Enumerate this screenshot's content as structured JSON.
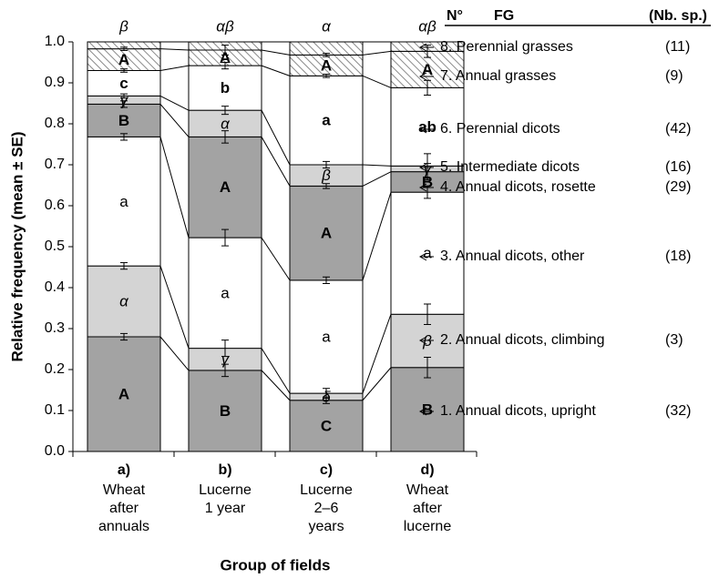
{
  "chart_data": {
    "type": "stacked_bar",
    "ylabel": "Relative frequency (mean ± SE)",
    "xlabel": "Group of fields",
    "categories": [
      "a)",
      "b)",
      "c)",
      "d)"
    ],
    "category_descriptions": [
      [
        "Wheat",
        "after",
        "annuals"
      ],
      [
        "Lucerne",
        "1 year"
      ],
      [
        "Lucerne",
        "2–6",
        "years"
      ],
      [
        "Wheat",
        "after",
        "lucerne"
      ]
    ],
    "top_letters": [
      "β",
      "αβ",
      "α",
      "αβ"
    ],
    "ylim": [
      0,
      1
    ],
    "yticks": [
      {
        "value": 0,
        "label": "0.0"
      },
      0.1,
      0.2,
      0.3,
      0.4,
      0.5,
      0.6,
      0.7,
      0.8,
      0.9,
      {
        "value": 1,
        "label": "1.0"
      }
    ],
    "legend_header": [
      "N°",
      "FG",
      "(Nb. sp.)"
    ],
    "series": [
      {
        "name": "1. Annual dicots, upright",
        "count_label": "(32)",
        "color": "#a3a3a3",
        "letter_weight": "bold",
        "letter_style": "normal",
        "values": [
          0.28,
          0.198,
          0.125,
          0.205
        ],
        "errors": [
          0.008,
          0.015,
          0.008,
          0.025
        ],
        "letters": [
          "A",
          "B",
          "C",
          "B"
        ]
      },
      {
        "name": "2. Annual dicots, climbing",
        "count_label": "(3)",
        "color": "#d4d4d4",
        "letter_weight": "normal",
        "letter_style": "italic",
        "values": [
          0.173,
          0.054,
          0.017,
          0.13
        ],
        "errors": [
          0.008,
          0.02,
          0.012,
          0.025
        ],
        "letters": [
          "α",
          "γ",
          "δ",
          "β"
        ]
      },
      {
        "name": "3. Annual dicots, other",
        "count_label": "(18)",
        "color": "#ffffff",
        "letter_weight": "normal",
        "letter_style": "normal",
        "values": [
          0.315,
          0.27,
          0.276,
          0.298
        ],
        "errors": [
          0.008,
          0.02,
          0.008,
          0.015
        ],
        "letters": [
          "a",
          "a",
          "a",
          "a"
        ]
      },
      {
        "name": "4. Annual dicots, rosette",
        "count_label": "(29)",
        "color": "#a3a3a3",
        "letter_weight": "bold",
        "letter_style": "normal",
        "values": [
          0.08,
          0.246,
          0.23,
          0.05
        ],
        "errors": [
          0.008,
          0.015,
          0.006,
          0.02
        ],
        "letters": [
          "B",
          "A",
          "A",
          "B"
        ]
      },
      {
        "name": "5. Intermediate dicots",
        "count_label": "(16)",
        "color": "#d4d4d4",
        "letter_weight": "normal",
        "letter_style": "italic",
        "values": [
          0.02,
          0.065,
          0.052,
          0.014
        ],
        "errors": [
          0.005,
          0.01,
          0.008,
          0.03
        ],
        "letters": [
          "γ",
          "α",
          "β",
          "γ"
        ]
      },
      {
        "name": "6. Perennial dicots",
        "count_label": "(42)",
        "color": "#ffffff",
        "letter_weight": "bold",
        "letter_style": "normal",
        "values": [
          0.062,
          0.109,
          0.217,
          0.191
        ],
        "errors": [
          0.004,
          0.008,
          0.004,
          0.018
        ],
        "letters": [
          "c",
          "b",
          "a",
          "ab"
        ]
      },
      {
        "name": "7. Annual grasses",
        "count_label": "(9)",
        "color": "hatch",
        "letter_weight": "bold",
        "letter_style": "normal",
        "values": [
          0.053,
          0.038,
          0.051,
          0.089
        ],
        "errors": [
          0.004,
          0.012,
          0.004,
          0.015
        ],
        "letters": [
          "A",
          "A",
          "A",
          "A"
        ]
      },
      {
        "name": "8. Perennial grasses",
        "count_label": "(11)",
        "color": "hatch",
        "letter_weight": "bold",
        "letter_style": "normal",
        "values": [
          0.017,
          0.02,
          0.032,
          0.023
        ],
        "errors": [
          null,
          null,
          null,
          null
        ],
        "letters": [
          null,
          null,
          null,
          null
        ]
      }
    ]
  }
}
